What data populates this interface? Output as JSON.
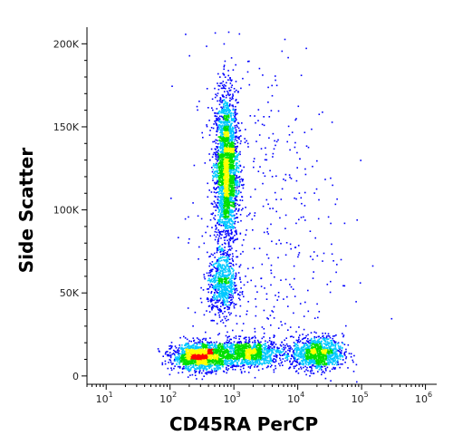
{
  "chart_data": {
    "type": "scatter",
    "style": "density-dot-plot",
    "xlabel": "CD45RA PerCP",
    "ylabel": "Side Scatter",
    "x_scale": "log",
    "xlim": [
      5,
      1500000
    ],
    "ylim": [
      -5000,
      210000
    ],
    "x_ticks": [
      {
        "value": 10,
        "base": "10",
        "exp": "1"
      },
      {
        "value": 100,
        "base": "10",
        "exp": "2"
      },
      {
        "value": 1000,
        "base": "10",
        "exp": "3"
      },
      {
        "value": 10000,
        "base": "10",
        "exp": "4"
      },
      {
        "value": 100000,
        "base": "10",
        "exp": "5"
      },
      {
        "value": 1000000,
        "base": "10",
        "exp": "6"
      }
    ],
    "y_ticks": [
      {
        "value": 0,
        "label": "0"
      },
      {
        "value": 50000,
        "label": "50K"
      },
      {
        "value": 100000,
        "label": "100K"
      },
      {
        "value": 150000,
        "label": "150K"
      },
      {
        "value": 200000,
        "label": "200K"
      }
    ],
    "density_colors": [
      "#0000ff",
      "#00c8ff",
      "#00e000",
      "#ffff00",
      "#ff0000"
    ],
    "populations": [
      {
        "name_shown": false,
        "cx": 750,
        "cy": 125000,
        "sx_log": 0.09,
        "sy": 23000,
        "count": 2600,
        "tilt": 0.0
      },
      {
        "name_shown": false,
        "cx": 650,
        "cy": 55000,
        "sx_log": 0.12,
        "sy": 9000,
        "count": 700,
        "tilt": 0.0
      },
      {
        "name_shown": false,
        "cx": 300,
        "cy": 12000,
        "sx_log": 0.22,
        "sy": 4000,
        "count": 1600,
        "tilt": 0.0
      },
      {
        "name_shown": false,
        "cx": 1600,
        "cy": 14000,
        "sx_log": 0.28,
        "sy": 4000,
        "count": 1200,
        "tilt": 0.0
      },
      {
        "name_shown": false,
        "cx": 20000,
        "cy": 14000,
        "sx_log": 0.2,
        "sy": 5000,
        "count": 1100,
        "tilt": 0.0
      },
      {
        "name_shown": false,
        "cx": 3000,
        "cy": 90000,
        "sx_log": 0.6,
        "sy": 55000,
        "count": 400,
        "tilt": 0.0
      }
    ]
  }
}
